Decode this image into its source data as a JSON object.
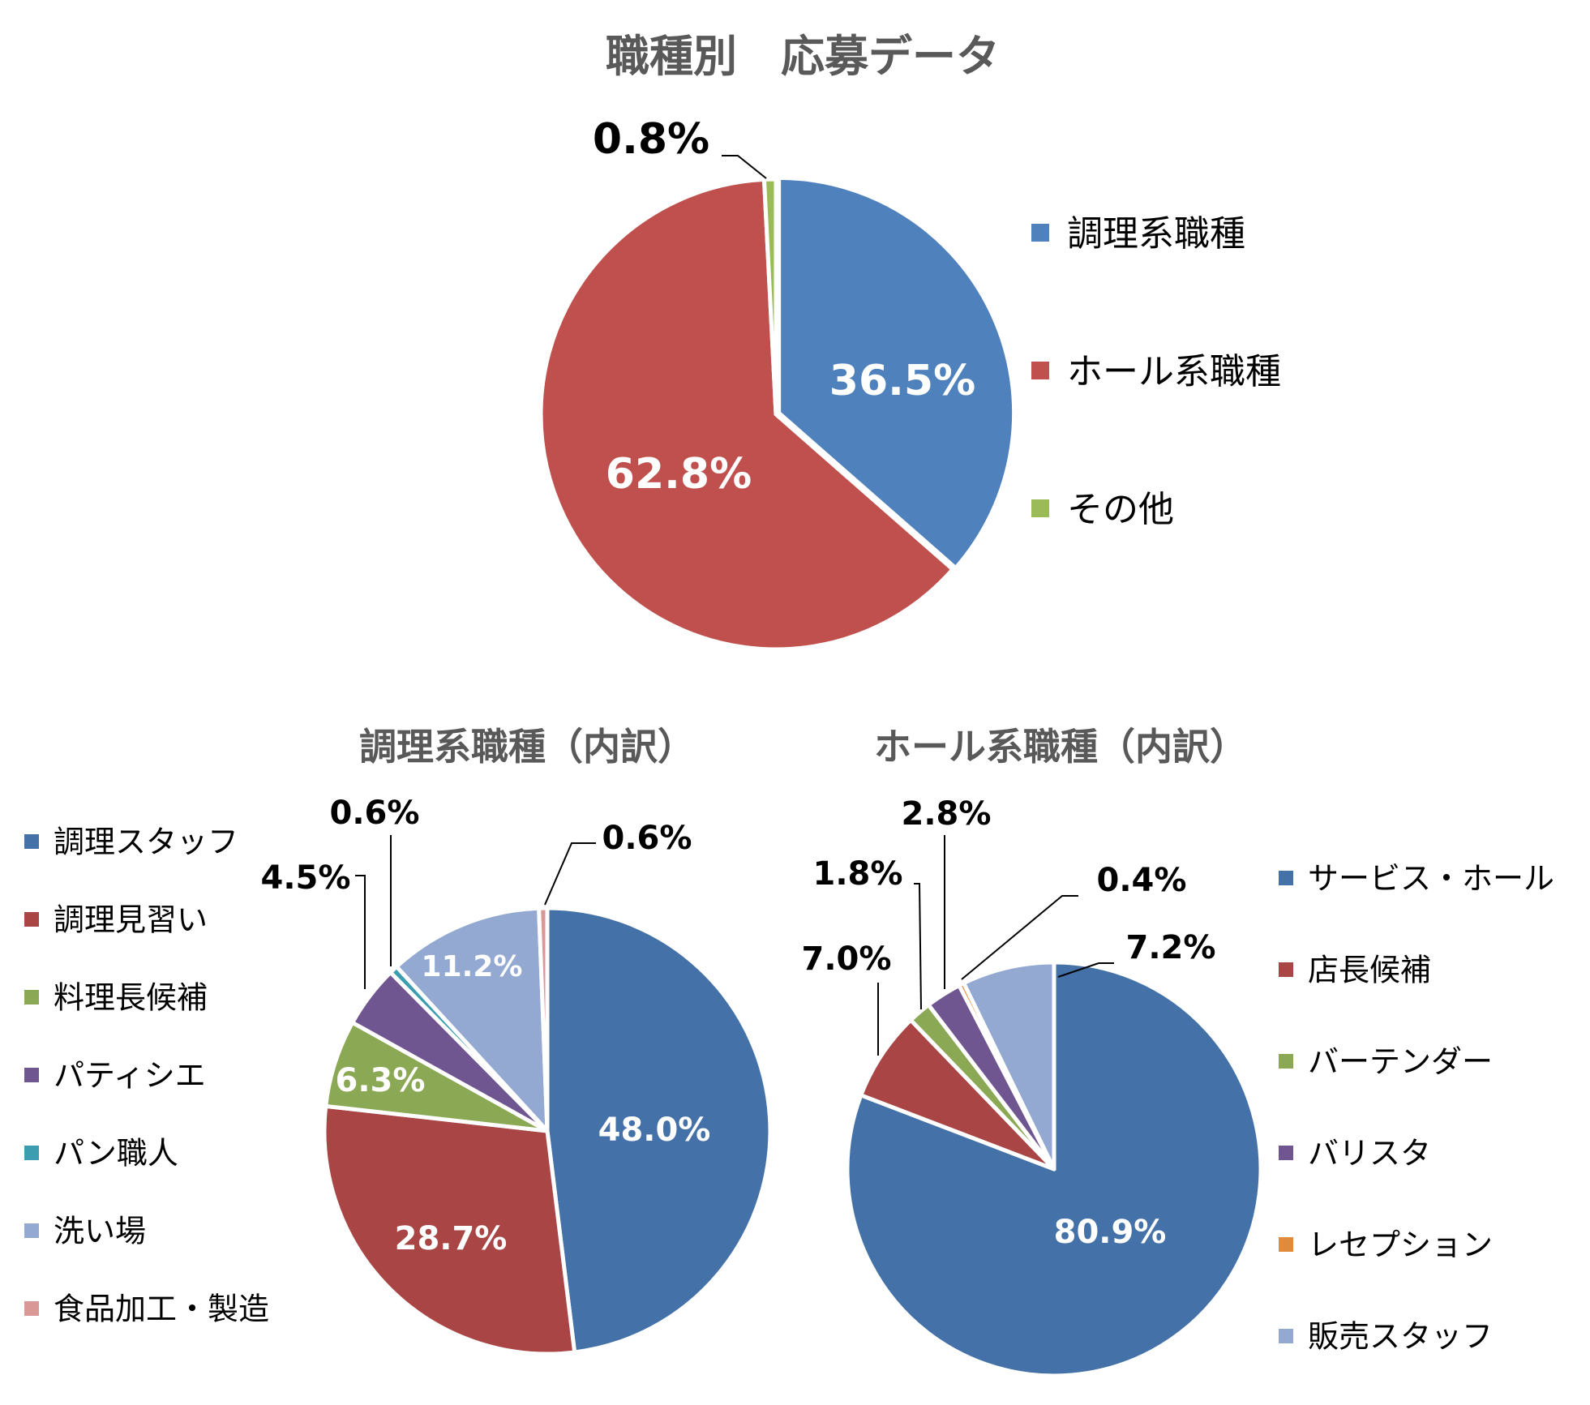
{
  "chart_data": [
    {
      "type": "pie",
      "title": "職種別　応募データ",
      "categories": [
        "調理系職種",
        "ホール系職種",
        "その他"
      ],
      "values": [
        36.5,
        62.8,
        0.8
      ],
      "labels": [
        "36.5%",
        "62.8%",
        "0.8%"
      ],
      "colors": [
        "#4F81BD",
        "#C0504D",
        "#9BBB59"
      ],
      "legend": "right"
    },
    {
      "type": "pie",
      "title": "調理系職種（内訳）",
      "categories": [
        "調理スタッフ",
        "調理見習い",
        "料理長候補",
        "パティシエ",
        "パン職人",
        "洗い場",
        "食品加工・製造"
      ],
      "values": [
        48.0,
        28.7,
        6.3,
        4.5,
        0.6,
        11.2,
        0.6
      ],
      "labels": [
        "48.0%",
        "28.7%",
        "6.3%",
        "4.5%",
        "0.6%",
        "11.2%",
        "0.6%"
      ],
      "colors": [
        "#4472A8",
        "#A94545",
        "#8BA854",
        "#6F5690",
        "#3C9DB0",
        "#93A9D1",
        "#D99795"
      ],
      "legend": "left"
    },
    {
      "type": "pie",
      "title": "ホール系職種（内訳）",
      "categories": [
        "サービス・ホール",
        "店長候補",
        "バーテンダー",
        "バリスタ",
        "レセプション",
        "販売スタッフ"
      ],
      "values": [
        80.9,
        7.0,
        1.8,
        2.8,
        0.4,
        7.2
      ],
      "labels": [
        "80.9%",
        "7.0%",
        "1.8%",
        "2.8%",
        "0.4%",
        "7.2%"
      ],
      "colors": [
        "#4472A8",
        "#A94545",
        "#8BA854",
        "#6F5690",
        "#E08A3C",
        "#93A9D1"
      ],
      "legend": "right"
    }
  ]
}
